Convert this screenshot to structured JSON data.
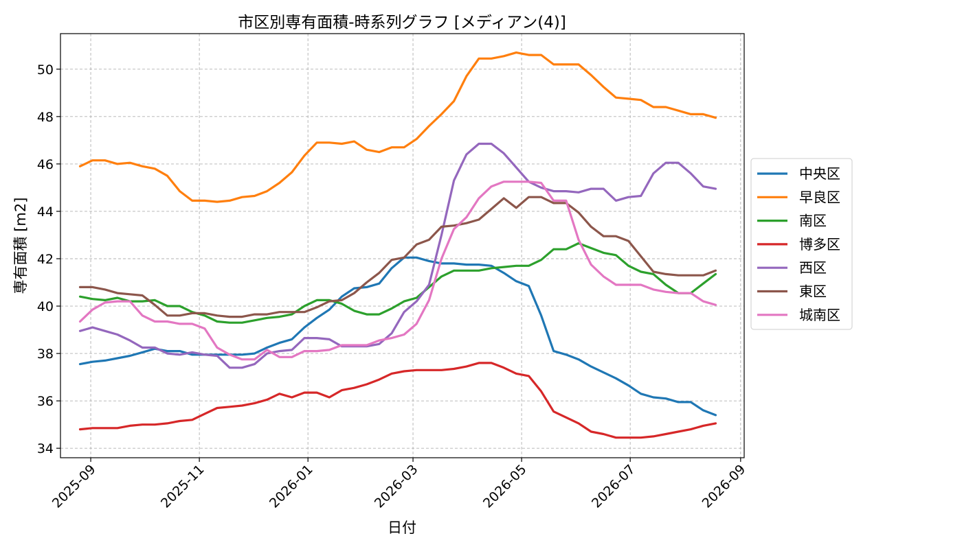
{
  "chart_data": {
    "type": "line",
    "title": "市区別専有面積-時系列グラフ [メディアン(4)]",
    "xlabel": "日付",
    "ylabel": "専有面積 [m2]",
    "xlim": [
      "2025-08-15",
      "2026-09-03"
    ],
    "ylim": [
      33.6,
      51.5
    ],
    "yticks": [
      34,
      36,
      38,
      40,
      42,
      44,
      46,
      48,
      50
    ],
    "xticks": [
      "2025-09",
      "2025-11",
      "2026-01",
      "2026-03",
      "2026-05",
      "2026-07",
      "2026-09"
    ],
    "xtick_dates": [
      "2025-09-01",
      "2025-11-01",
      "2026-01-01",
      "2026-03-01",
      "2026-05-01",
      "2026-07-01",
      "2026-09-01"
    ],
    "grid": true,
    "legend_position": "right",
    "x": [
      "2025-08-26",
      "2025-09-02",
      "2025-09-09",
      "2025-09-16",
      "2025-09-23",
      "2025-09-30",
      "2025-10-07",
      "2025-10-14",
      "2025-10-21",
      "2025-10-28",
      "2025-11-04",
      "2025-11-11",
      "2025-11-18",
      "2025-11-25",
      "2025-12-02",
      "2025-12-09",
      "2025-12-16",
      "2025-12-23",
      "2025-12-30",
      "2026-01-06",
      "2026-01-13",
      "2026-01-20",
      "2026-01-27",
      "2026-02-03",
      "2026-02-10",
      "2026-02-17",
      "2026-02-24",
      "2026-03-03",
      "2026-03-10",
      "2026-03-17",
      "2026-03-24",
      "2026-03-31",
      "2026-04-07",
      "2026-04-14",
      "2026-04-21",
      "2026-04-28",
      "2026-05-05",
      "2026-05-12",
      "2026-05-19",
      "2026-05-26",
      "2026-06-02",
      "2026-06-09",
      "2026-06-16",
      "2026-06-23",
      "2026-06-30",
      "2026-07-07",
      "2026-07-14",
      "2026-07-21",
      "2026-07-28",
      "2026-08-04",
      "2026-08-11",
      "2026-08-18"
    ],
    "series": [
      {
        "name": "中央区",
        "color": "#1f77b4",
        "values": [
          37.55,
          37.65,
          37.7,
          37.8,
          37.9,
          38.05,
          38.2,
          38.1,
          38.1,
          37.95,
          37.95,
          37.95,
          37.95,
          37.95,
          38.0,
          38.25,
          38.45,
          38.6,
          39.1,
          39.5,
          39.85,
          40.4,
          40.75,
          40.8,
          40.95,
          41.6,
          42.05,
          42.05,
          41.9,
          41.8,
          41.8,
          41.75,
          41.75,
          41.7,
          41.4,
          41.05,
          40.85,
          39.6,
          38.1,
          37.95,
          37.75,
          37.45,
          37.2,
          36.95,
          36.65,
          36.3,
          36.15,
          36.1,
          35.95,
          35.95,
          35.6,
          35.4
        ]
      },
      {
        "name": "早良区",
        "color": "#ff7f0e",
        "values": [
          45.9,
          46.15,
          46.15,
          46.0,
          46.05,
          45.9,
          45.8,
          45.5,
          44.85,
          44.45,
          44.45,
          44.4,
          44.45,
          44.6,
          44.65,
          44.85,
          45.2,
          45.65,
          46.35,
          46.9,
          46.9,
          46.85,
          46.95,
          46.6,
          46.5,
          46.7,
          46.7,
          47.05,
          47.6,
          48.1,
          48.65,
          49.7,
          50.45,
          50.45,
          50.55,
          50.7,
          50.6,
          50.6,
          50.2,
          50.2,
          50.2,
          49.75,
          49.25,
          48.8,
          48.75,
          48.7,
          48.4,
          48.4,
          48.25,
          48.1,
          48.1,
          47.95
        ]
      },
      {
        "name": "南区",
        "color": "#2ca02c",
        "values": [
          40.4,
          40.3,
          40.25,
          40.35,
          40.2,
          40.2,
          40.25,
          40.0,
          40.0,
          39.75,
          39.6,
          39.35,
          39.3,
          39.3,
          39.4,
          39.5,
          39.55,
          39.65,
          40.0,
          40.25,
          40.25,
          40.1,
          39.8,
          39.65,
          39.65,
          39.9,
          40.2,
          40.35,
          40.8,
          41.25,
          41.5,
          41.5,
          41.5,
          41.6,
          41.65,
          41.7,
          41.7,
          41.95,
          42.4,
          42.4,
          42.65,
          42.45,
          42.25,
          42.15,
          41.7,
          41.45,
          41.35,
          40.9,
          40.55,
          40.55,
          40.95,
          41.35
        ]
      },
      {
        "name": "博多区",
        "color": "#d62728",
        "values": [
          34.8,
          34.85,
          34.85,
          34.85,
          34.95,
          35.0,
          35.0,
          35.05,
          35.15,
          35.2,
          35.45,
          35.7,
          35.75,
          35.8,
          35.9,
          36.05,
          36.3,
          36.15,
          36.35,
          36.35,
          36.15,
          36.45,
          36.55,
          36.7,
          36.9,
          37.15,
          37.25,
          37.3,
          37.3,
          37.3,
          37.35,
          37.45,
          37.6,
          37.6,
          37.4,
          37.15,
          37.05,
          36.4,
          35.55,
          35.3,
          35.05,
          34.7,
          34.6,
          34.45,
          34.45,
          34.45,
          34.5,
          34.6,
          34.7,
          34.8,
          34.95,
          35.05
        ]
      },
      {
        "name": "西区",
        "color": "#9467bd",
        "values": [
          38.95,
          39.1,
          38.95,
          38.8,
          38.55,
          38.25,
          38.25,
          38.0,
          37.95,
          38.05,
          37.95,
          37.9,
          37.4,
          37.4,
          37.55,
          38.0,
          38.1,
          38.15,
          38.65,
          38.65,
          38.6,
          38.3,
          38.3,
          38.3,
          38.4,
          38.85,
          39.75,
          40.2,
          40.9,
          43.0,
          45.3,
          46.4,
          46.85,
          46.85,
          46.45,
          45.85,
          45.25,
          45.0,
          44.85,
          44.85,
          44.8,
          44.95,
          44.95,
          44.45,
          44.6,
          44.65,
          45.6,
          46.05,
          46.05,
          45.6,
          45.05,
          44.95
        ]
      },
      {
        "name": "東区",
        "color": "#8c564b",
        "values": [
          40.8,
          40.8,
          40.7,
          40.55,
          40.5,
          40.45,
          40.05,
          39.6,
          39.6,
          39.7,
          39.7,
          39.6,
          39.55,
          39.55,
          39.65,
          39.65,
          39.75,
          39.75,
          39.75,
          39.95,
          40.2,
          40.25,
          40.55,
          41.0,
          41.4,
          41.95,
          42.05,
          42.6,
          42.8,
          43.35,
          43.4,
          43.5,
          43.65,
          44.1,
          44.55,
          44.15,
          44.6,
          44.6,
          44.35,
          44.35,
          43.95,
          43.35,
          42.95,
          42.95,
          42.75,
          42.1,
          41.45,
          41.35,
          41.3,
          41.3,
          41.3,
          41.5
        ]
      },
      {
        "name": "城南区",
        "color": "#e377c2",
        "values": [
          39.35,
          39.85,
          40.15,
          40.2,
          40.2,
          39.6,
          39.35,
          39.35,
          39.25,
          39.25,
          39.05,
          38.25,
          37.95,
          37.75,
          37.75,
          38.15,
          37.85,
          37.85,
          38.1,
          38.1,
          38.15,
          38.35,
          38.35,
          38.35,
          38.55,
          38.65,
          38.8,
          39.25,
          40.25,
          42.0,
          43.25,
          43.75,
          44.55,
          45.05,
          45.25,
          45.25,
          45.25,
          45.2,
          44.45,
          44.45,
          42.8,
          41.75,
          41.25,
          40.9,
          40.9,
          40.9,
          40.7,
          40.6,
          40.55,
          40.55,
          40.2,
          40.05
        ]
      }
    ]
  }
}
